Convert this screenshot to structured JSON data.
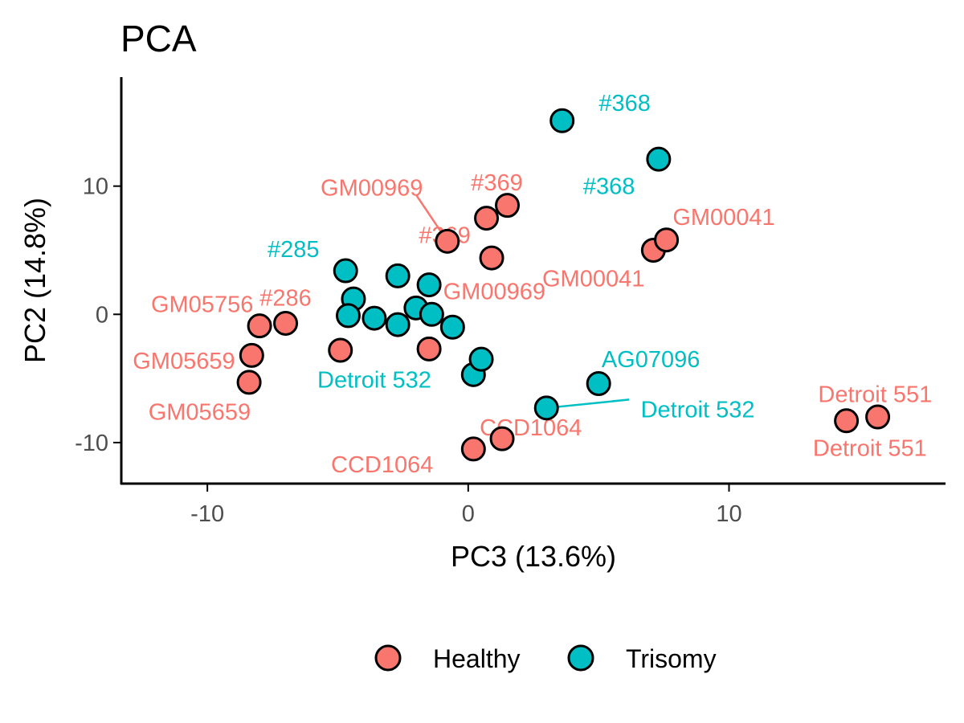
{
  "chart_data": {
    "type": "scatter",
    "title": "PCA",
    "xlabel": "PC3 (13.6%)",
    "ylabel": "PC2 (14.8%)",
    "xlim": [
      -13.3,
      18.3
    ],
    "ylim": [
      -13.2,
      18.5
    ],
    "xticks": [
      -10,
      0,
      10
    ],
    "yticks": [
      -10,
      0,
      10
    ],
    "grid": false,
    "legend_position": "bottom",
    "colors": {
      "Healthy": "#F8766D",
      "Trisomy": "#00BFC4",
      "outline": "#000000"
    },
    "legend": [
      {
        "label": "Healthy",
        "group": "Healthy"
      },
      {
        "label": "Trisomy",
        "group": "Trisomy"
      }
    ],
    "points": [
      {
        "x": -8.4,
        "y": -5.3,
        "group": "Healthy"
      },
      {
        "x": -8.3,
        "y": -3.2,
        "group": "Healthy"
      },
      {
        "x": -8.0,
        "y": -0.9,
        "group": "Healthy"
      },
      {
        "x": -7.0,
        "y": -0.7,
        "group": "Healthy"
      },
      {
        "x": -4.9,
        "y": -2.8,
        "group": "Healthy"
      },
      {
        "x": -1.5,
        "y": -2.7,
        "group": "Healthy"
      },
      {
        "x": -0.8,
        "y": 5.7,
        "group": "Healthy"
      },
      {
        "x": 0.7,
        "y": 7.5,
        "group": "Healthy"
      },
      {
        "x": 0.9,
        "y": 4.4,
        "group": "Healthy"
      },
      {
        "x": 1.5,
        "y": 8.5,
        "group": "Healthy"
      },
      {
        "x": 0.2,
        "y": -10.5,
        "group": "Healthy"
      },
      {
        "x": 1.3,
        "y": -9.7,
        "group": "Healthy"
      },
      {
        "x": 7.1,
        "y": 5.0,
        "group": "Healthy"
      },
      {
        "x": 7.6,
        "y": 5.8,
        "group": "Healthy"
      },
      {
        "x": 14.5,
        "y": -8.3,
        "group": "Healthy"
      },
      {
        "x": 15.7,
        "y": -8.0,
        "group": "Healthy"
      },
      {
        "x": -4.7,
        "y": 3.4,
        "group": "Trisomy"
      },
      {
        "x": -4.4,
        "y": 1.2,
        "group": "Trisomy"
      },
      {
        "x": -4.6,
        "y": -0.1,
        "group": "Trisomy"
      },
      {
        "x": -3.6,
        "y": -0.3,
        "group": "Trisomy"
      },
      {
        "x": -2.7,
        "y": 3.0,
        "group": "Trisomy"
      },
      {
        "x": -2.7,
        "y": -0.8,
        "group": "Trisomy"
      },
      {
        "x": -2.0,
        "y": 0.5,
        "group": "Trisomy"
      },
      {
        "x": -1.5,
        "y": 2.3,
        "group": "Trisomy"
      },
      {
        "x": -1.4,
        "y": 0.0,
        "group": "Trisomy"
      },
      {
        "x": -0.6,
        "y": -1.0,
        "group": "Trisomy"
      },
      {
        "x": 0.2,
        "y": -4.7,
        "group": "Trisomy"
      },
      {
        "x": 0.5,
        "y": -3.5,
        "group": "Trisomy"
      },
      {
        "x": 3.0,
        "y": -7.3,
        "group": "Trisomy"
      },
      {
        "x": 3.6,
        "y": 15.1,
        "group": "Trisomy"
      },
      {
        "x": 5.0,
        "y": -5.4,
        "group": "Trisomy"
      },
      {
        "x": 7.3,
        "y": 12.1,
        "group": "Trisomy"
      }
    ],
    "labels": [
      {
        "text": "#368",
        "x": 6.0,
        "y": 16.5,
        "group": "Trisomy"
      },
      {
        "text": "#368",
        "x": 5.4,
        "y": 10.0,
        "group": "Trisomy"
      },
      {
        "text": "GM00969",
        "x": -3.7,
        "y": 9.9,
        "group": "Healthy",
        "line_to": [
          -0.8,
          5.7
        ]
      },
      {
        "text": "#369",
        "x": 1.1,
        "y": 10.3,
        "group": "Healthy"
      },
      {
        "text": "#369",
        "x": -0.9,
        "y": 6.2,
        "group": "Healthy"
      },
      {
        "text": "GM00041",
        "x": 9.8,
        "y": 7.6,
        "group": "Healthy"
      },
      {
        "text": "#285",
        "x": -6.7,
        "y": 5.1,
        "group": "Trisomy"
      },
      {
        "text": "GM00041",
        "x": 4.8,
        "y": 2.8,
        "group": "Healthy"
      },
      {
        "text": "GM00969",
        "x": 1.0,
        "y": 1.8,
        "group": "Healthy"
      },
      {
        "text": "GM05756",
        "x": -10.2,
        "y": 0.8,
        "group": "Healthy"
      },
      {
        "text": "#286",
        "x": -7.0,
        "y": 1.3,
        "group": "Healthy"
      },
      {
        "text": "GM05659",
        "x": -10.9,
        "y": -3.6,
        "group": "Healthy"
      },
      {
        "text": "AG07096",
        "x": 7.0,
        "y": -3.5,
        "group": "Trisomy"
      },
      {
        "text": "Detroit 532",
        "x": -3.6,
        "y": -5.1,
        "group": "Trisomy"
      },
      {
        "text": "Detroit 532",
        "x": 8.8,
        "y": -7.4,
        "group": "Trisomy",
        "line_to": [
          3.0,
          -7.3
        ]
      },
      {
        "text": "Detroit 551",
        "x": 15.6,
        "y": -6.2,
        "group": "Healthy"
      },
      {
        "text": "GM05659",
        "x": -10.3,
        "y": -7.6,
        "group": "Healthy"
      },
      {
        "text": "CCD1064",
        "x": 2.4,
        "y": -8.8,
        "group": "Healthy"
      },
      {
        "text": "Detroit 551",
        "x": 15.4,
        "y": -10.4,
        "group": "Healthy"
      },
      {
        "text": "CCD1064",
        "x": -3.3,
        "y": -11.7,
        "group": "Healthy"
      }
    ]
  }
}
